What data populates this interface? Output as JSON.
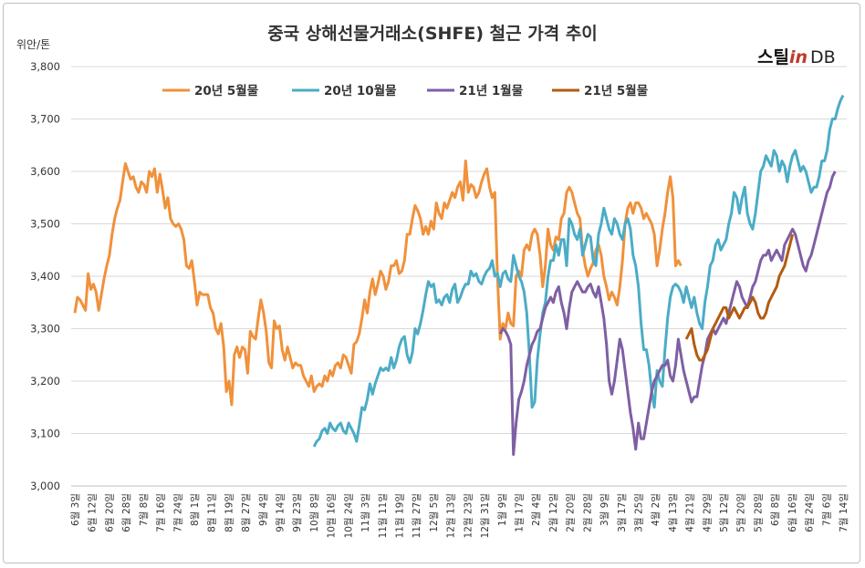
{
  "title": "중국 상해선물거래소(SHFE) 철근 가격 추이",
  "logo": {
    "text_a": "스틸",
    "text_b": "in",
    "text_c": "DB"
  },
  "chart_data": {
    "type": "line",
    "ylabel": "위안/톤",
    "ylim": [
      3000,
      3800
    ],
    "yticks": [
      "3,000",
      "3,100",
      "3,200",
      "3,300",
      "3,400",
      "3,500",
      "3,600",
      "3,700",
      "3,800"
    ],
    "xlabels": [
      "6월 3일",
      "6월 12일",
      "6월 20일",
      "6월 28일",
      "7월 8일",
      "7월 16일",
      "7월 24일",
      "8월 1일",
      "8월 11일",
      "8월 19일",
      "8월 27일",
      "9월 4일",
      "9월 14일",
      "9월 23일",
      "10월 8일",
      "10월 16일",
      "10월 24일",
      "11월 3일",
      "11월 11일",
      "11월 19일",
      "11월 27일",
      "12월 5일",
      "12월 13일",
      "12월 23일",
      "12월 31일",
      "1월 9일",
      "1월 17일",
      "2월 4일",
      "2월 12일",
      "2월 20일",
      "2월 28일",
      "3월 9일",
      "3월 17일",
      "3월 25일",
      "4월 2일",
      "4월 13일",
      "4월 21일",
      "4월 29일",
      "5월 12일",
      "5월 20일",
      "5월 28일",
      "6월 8일",
      "6월 16일",
      "6월 24일",
      "7월 6일",
      "7월 14일"
    ],
    "series": [
      {
        "name": "20년 5월물",
        "color": "#f0913b",
        "start": 0,
        "values": [
          3330,
          3360,
          3355,
          3345,
          3335,
          3405,
          3375,
          3385,
          3370,
          3335,
          3365,
          3395,
          3420,
          3440,
          3480,
          3510,
          3530,
          3545,
          3580,
          3615,
          3600,
          3585,
          3590,
          3570,
          3560,
          3580,
          3575,
          3560,
          3600,
          3590,
          3605,
          3560,
          3595,
          3565,
          3530,
          3550,
          3510,
          3500,
          3495,
          3500,
          3490,
          3470,
          3420,
          3415,
          3430,
          3390,
          3345,
          3370,
          3365,
          3365,
          3365,
          3340,
          3330,
          3300,
          3290,
          3310,
          3265,
          3180,
          3200,
          3155,
          3250,
          3265,
          3245,
          3265,
          3260,
          3215,
          3295,
          3285,
          3280,
          3320,
          3355,
          3330,
          3295,
          3235,
          3225,
          3315,
          3300,
          3305,
          3260,
          3240,
          3265,
          3245,
          3225,
          3235,
          3230,
          3230,
          3210,
          3200,
          3190,
          3210,
          3180,
          3190,
          3195,
          3190,
          3210,
          3200,
          3220,
          3210,
          3230,
          3235,
          3225,
          3250,
          3245,
          3230,
          3215,
          3270,
          3275,
          3290,
          3320,
          3355,
          3330,
          3370,
          3395,
          3365,
          3385,
          3410,
          3400,
          3375,
          3390,
          3420,
          3420,
          3430,
          3405,
          3410,
          3430,
          3480,
          3480,
          3510,
          3535,
          3525,
          3510,
          3480,
          3495,
          3480,
          3505,
          3490,
          3540,
          3520,
          3510,
          3540,
          3530,
          3545,
          3560,
          3550,
          3570,
          3580,
          3545,
          3620,
          3560,
          3575,
          3570,
          3550,
          3560,
          3580,
          3595,
          3605,
          3570,
          3550,
          3560,
          3400,
          3280,
          3310,
          3300,
          3330,
          3310,
          3305,
          3400,
          3410,
          3400,
          3450,
          3460,
          3450,
          3480,
          3490,
          3480,
          3440,
          3380,
          3420,
          3490,
          3460,
          3450,
          3475,
          3470,
          3510,
          3520,
          3560,
          3570,
          3560,
          3540,
          3520,
          3510,
          3450,
          3420,
          3400,
          3415,
          3425,
          3450,
          3460,
          3440,
          3400,
          3380,
          3355,
          3370,
          3360,
          3345,
          3380,
          3430,
          3500,
          3530,
          3540,
          3520,
          3540,
          3540,
          3530,
          3510,
          3520,
          3510,
          3500,
          3480,
          3420,
          3450,
          3490,
          3520,
          3560,
          3590,
          3550,
          3420,
          3430,
          3420
        ]
      },
      {
        "name": "20년 10월물",
        "color": "#4bacc6",
        "start": 90,
        "values": [
          3075,
          3085,
          3090,
          3105,
          3110,
          3100,
          3120,
          3110,
          3105,
          3115,
          3120,
          3105,
          3100,
          3120,
          3110,
          3100,
          3085,
          3115,
          3150,
          3145,
          3165,
          3195,
          3175,
          3195,
          3210,
          3225,
          3220,
          3225,
          3220,
          3245,
          3225,
          3240,
          3265,
          3280,
          3285,
          3250,
          3235,
          3255,
          3300,
          3290,
          3310,
          3335,
          3365,
          3390,
          3380,
          3385,
          3350,
          3355,
          3345,
          3360,
          3365,
          3350,
          3375,
          3385,
          3350,
          3360,
          3375,
          3385,
          3385,
          3410,
          3400,
          3405,
          3390,
          3385,
          3400,
          3410,
          3415,
          3430,
          3400,
          3405,
          3380,
          3405,
          3410,
          3395,
          3390,
          3440,
          3420,
          3400,
          3390,
          3370,
          3330,
          3250,
          3150,
          3160,
          3240,
          3290,
          3330,
          3350,
          3400,
          3430,
          3430,
          3460,
          3440,
          3470,
          3470,
          3420,
          3510,
          3500,
          3480,
          3470,
          3490,
          3440,
          3460,
          3480,
          3475,
          3430,
          3420,
          3480,
          3500,
          3530,
          3510,
          3490,
          3480,
          3510,
          3500,
          3480,
          3470,
          3500,
          3510,
          3490,
          3440,
          3420,
          3380,
          3310,
          3260,
          3260,
          3230,
          3180,
          3150,
          3220,
          3200,
          3190,
          3260,
          3320,
          3360,
          3380,
          3385,
          3380,
          3370,
          3350,
          3380,
          3360,
          3340,
          3360,
          3330,
          3310,
          3300,
          3350,
          3380,
          3420,
          3430,
          3460,
          3470,
          3450,
          3460,
          3470,
          3500,
          3520,
          3560,
          3550,
          3520,
          3550,
          3570,
          3520,
          3500,
          3490,
          3520,
          3560,
          3600,
          3610,
          3630,
          3620,
          3610,
          3640,
          3630,
          3600,
          3620,
          3610,
          3580,
          3610,
          3630,
          3640,
          3620,
          3600,
          3610,
          3600,
          3580,
          3560,
          3570,
          3570,
          3590,
          3620,
          3620,
          3640,
          3680,
          3700,
          3700,
          3720,
          3735,
          3745
        ]
      },
      {
        "name": "21년 1월물",
        "color": "#7e5fa3",
        "start": 160,
        "values": [
          3290,
          3300,
          3295,
          3285,
          3270,
          3060,
          3120,
          3165,
          3180,
          3200,
          3230,
          3250,
          3270,
          3280,
          3295,
          3300,
          3320,
          3340,
          3350,
          3360,
          3350,
          3370,
          3380,
          3350,
          3330,
          3300,
          3340,
          3370,
          3380,
          3390,
          3380,
          3370,
          3370,
          3380,
          3385,
          3370,
          3360,
          3380,
          3350,
          3320,
          3270,
          3200,
          3175,
          3200,
          3240,
          3280,
          3260,
          3220,
          3180,
          3140,
          3110,
          3070,
          3120,
          3090,
          3090,
          3120,
          3150,
          3180,
          3200,
          3210,
          3220,
          3230,
          3230,
          3240,
          3210,
          3200,
          3230,
          3280,
          3250,
          3220,
          3200,
          3180,
          3160,
          3170,
          3170,
          3200,
          3230,
          3250,
          3280,
          3290,
          3300,
          3290,
          3300,
          3310,
          3320,
          3310,
          3330,
          3350,
          3370,
          3390,
          3380,
          3360,
          3350,
          3340,
          3360,
          3380,
          3390,
          3410,
          3430,
          3440,
          3440,
          3450,
          3430,
          3440,
          3450,
          3440,
          3430,
          3460,
          3470,
          3480,
          3490,
          3480,
          3460,
          3440,
          3420,
          3410,
          3430,
          3440,
          3460,
          3480,
          3500,
          3520,
          3540,
          3560,
          3570,
          3590,
          3600
        ]
      },
      {
        "name": "21년 5월물",
        "color": "#b35b10",
        "start": 230,
        "values": [
          3280,
          3290,
          3300,
          3270,
          3250,
          3240,
          3240,
          3250,
          3260,
          3280,
          3300,
          3310,
          3320,
          3330,
          3340,
          3340,
          3320,
          3330,
          3340,
          3330,
          3320,
          3330,
          3340,
          3340,
          3350,
          3360,
          3350,
          3330,
          3320,
          3320,
          3330,
          3350,
          3360,
          3370,
          3380,
          3400,
          3410,
          3420,
          3440,
          3460,
          3480
        ]
      }
    ]
  }
}
